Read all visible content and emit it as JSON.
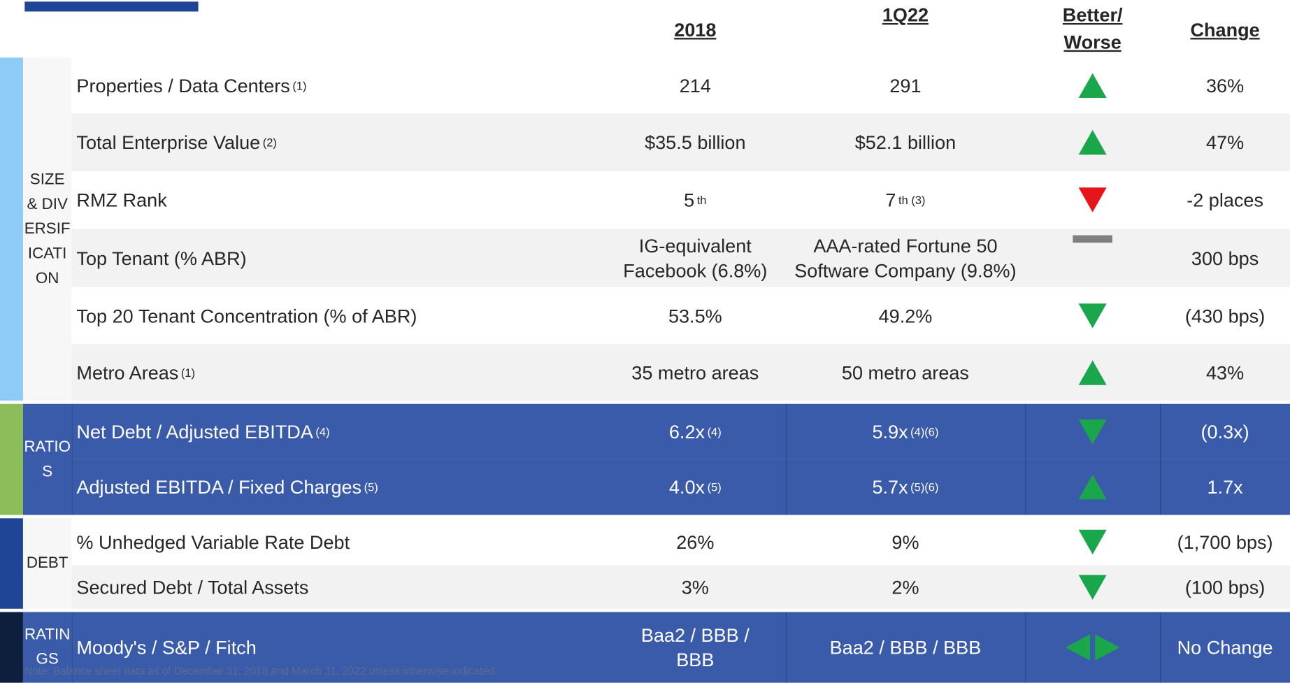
{
  "header": {
    "columns": [
      "2018",
      "1Q22",
      "Better/\nWorse",
      "Change"
    ]
  },
  "groups": [
    {
      "label": "SIZE & DIVERSIFICATION",
      "strip_color": "#8ecbf7",
      "fill": [
        "#ffffff",
        "#f2f2f2"
      ],
      "text_color": "#262626",
      "separators": false,
      "rows": [
        {
          "label": "Properties / Data Centers",
          "note": "(1)",
          "v2018": {
            "text": "214"
          },
          "v1q22": {
            "text": "291"
          },
          "indicator": "up",
          "indicator_color": "#1aa64a",
          "change": "36%"
        },
        {
          "label": "Total Enterprise Value",
          "note": "(2)",
          "v2018": {
            "text": "$35.5 billion"
          },
          "v1q22": {
            "text": "$52.1 billion"
          },
          "indicator": "up",
          "indicator_color": "#1aa64a",
          "change": "47%"
        },
        {
          "label": "RMZ Rank",
          "v2018": {
            "text": "5",
            "sup": "th"
          },
          "v1q22": {
            "text": "7",
            "sup": "th (3)"
          },
          "indicator": "down",
          "indicator_color": "#e8141b",
          "change": "-2 places"
        },
        {
          "label": "Top Tenant (% ABR)",
          "v2018": {
            "text": "IG-equivalent\nFacebook (6.8%)"
          },
          "v1q22": {
            "text": "AAA-rated Fortune 50\nSoftware Company (9.8%)"
          },
          "indicator": "flat",
          "indicator_color": "#7f7f7f",
          "change": "300 bps"
        },
        {
          "label": "Top 20 Tenant Concentration (% of ABR)",
          "v2018": {
            "text": "53.5%"
          },
          "v1q22": {
            "text": "49.2%"
          },
          "indicator": "down",
          "indicator_color": "#1aa64a",
          "change": "(430 bps)"
        },
        {
          "label": "Metro Areas",
          "note": "(1)",
          "v2018": {
            "text": "35 metro areas"
          },
          "v1q22": {
            "text": "50 metro areas"
          },
          "indicator": "up",
          "indicator_color": "#1aa64a",
          "change": "43%"
        }
      ]
    },
    {
      "label": "RATIOS",
      "strip_color": "#8bbd5a",
      "fill": [
        "#3a5ba9",
        "#3a5ba9"
      ],
      "text_color": "#ffffff",
      "separators": true,
      "rows": [
        {
          "label": "Net Debt / Adjusted EBITDA",
          "note": "(4)",
          "v2018": {
            "text": "6.2x",
            "sup": "(4)"
          },
          "v1q22": {
            "text": "5.9x",
            "sup": "(4)(6)"
          },
          "indicator": "down",
          "indicator_color": "#1aa64a",
          "change": "(0.3x)"
        },
        {
          "label": "Adjusted EBITDA / Fixed Charges",
          "note": "(5)",
          "v2018": {
            "text": "4.0x",
            "sup": "(5)"
          },
          "v1q22": {
            "text": "5.7x",
            "sup": "(5)(6)"
          },
          "indicator": "up",
          "indicator_color": "#1aa64a",
          "change": "1.7x"
        }
      ]
    },
    {
      "label": "DEBT",
      "strip_color": "#1f4597",
      "fill": [
        "#ffffff",
        "#f2f2f2"
      ],
      "text_color": "#262626",
      "separators": false,
      "rows": [
        {
          "label": "% Unhedged Variable Rate Debt",
          "v2018": {
            "text": "26%"
          },
          "v1q22": {
            "text": "9%"
          },
          "indicator": "down",
          "indicator_color": "#1aa64a",
          "change": "(1,700 bps)"
        },
        {
          "label": "Secured Debt / Total Assets",
          "v2018": {
            "text": "3%"
          },
          "v1q22": {
            "text": "2%"
          },
          "indicator": "down",
          "indicator_color": "#1aa64a",
          "change": "(100 bps)"
        }
      ]
    },
    {
      "label": "RATINGS",
      "strip_color": "#0d1f3c",
      "fill": [
        "#3a5ba9"
      ],
      "text_color": "#ffffff",
      "separators": true,
      "rows": [
        {
          "label": "Moody's / S&P / Fitch",
          "v2018": {
            "text": "Baa2  /  BBB  /\nBBB"
          },
          "v1q22": {
            "text": "Baa2  /  BBB  /  BBB"
          },
          "indicator": "both",
          "indicator_color": "#1aa64a",
          "change": "No Change"
        }
      ]
    }
  ],
  "footnote": "Note: Balance sheet data as of December 31, 2018 and March 31, 2022 unless otherwise indicated."
}
